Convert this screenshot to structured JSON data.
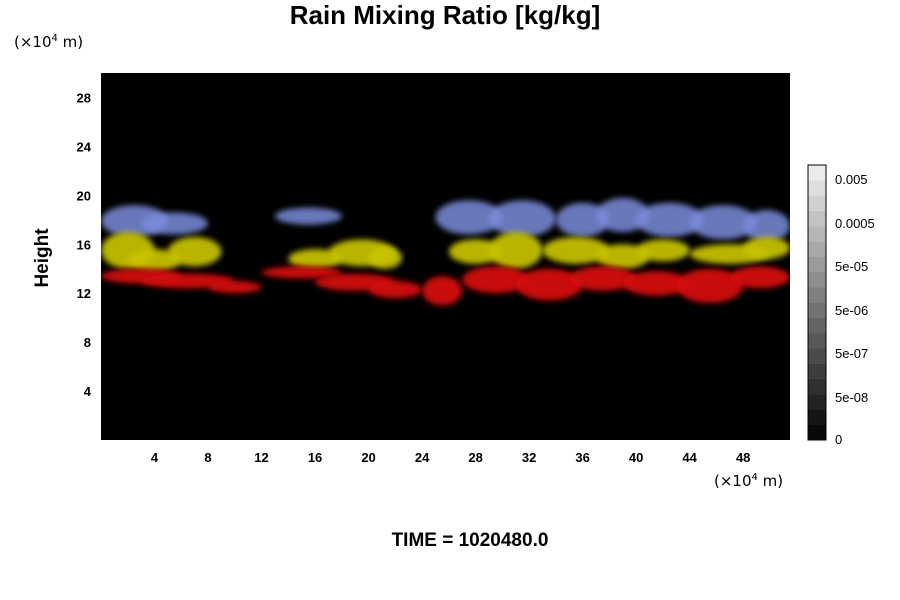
{
  "chart_data": {
    "type": "heatmap",
    "title": "Rain Mixing Ratio [kg/kg]",
    "ylabel": "Height",
    "x_unit": {
      "prefix": "(×10",
      "exp": "4",
      "suffix": " m)"
    },
    "y_unit": {
      "prefix": "(×10",
      "exp": "4",
      "suffix": " m)"
    },
    "xlim": [
      0,
      51.5
    ],
    "ylim": [
      0,
      30
    ],
    "x_ticks": [
      "4",
      "8",
      "12",
      "16",
      "20",
      "24",
      "28",
      "32",
      "36",
      "40",
      "44",
      "48"
    ],
    "y_ticks": [
      "4",
      "8",
      "12",
      "16",
      "20",
      "24",
      "28"
    ],
    "colorbar_labels": [
      "0.005",
      "0.0005",
      "5e-05",
      "5e-06",
      "5e-07",
      "5e-08",
      "0"
    ],
    "time_label": "TIME = 1020480.0",
    "colors": {
      "background": "#000000",
      "red_layer": "#d40808",
      "yellow_layer": "#c9c400",
      "blue_layer": "#7c8cdc"
    }
  }
}
